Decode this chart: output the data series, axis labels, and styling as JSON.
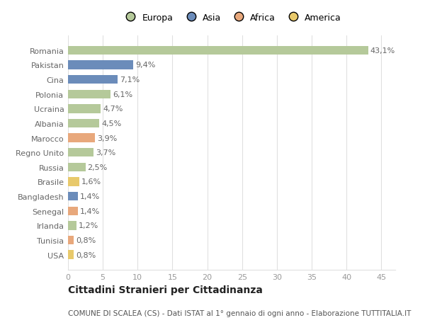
{
  "countries": [
    "Romania",
    "Pakistan",
    "Cina",
    "Polonia",
    "Ucraina",
    "Albania",
    "Marocco",
    "Regno Unito",
    "Russia",
    "Brasile",
    "Bangladesh",
    "Senegal",
    "Irlanda",
    "Tunisia",
    "USA"
  ],
  "values": [
    43.1,
    9.4,
    7.1,
    6.1,
    4.7,
    4.5,
    3.9,
    3.7,
    2.5,
    1.6,
    1.4,
    1.4,
    1.2,
    0.8,
    0.8
  ],
  "labels": [
    "43,1%",
    "9,4%",
    "7,1%",
    "6,1%",
    "4,7%",
    "4,5%",
    "3,9%",
    "3,7%",
    "2,5%",
    "1,6%",
    "1,4%",
    "1,4%",
    "1,2%",
    "0,8%",
    "0,8%"
  ],
  "colors": [
    "#b5c99a",
    "#6b8cba",
    "#6b8cba",
    "#b5c99a",
    "#b5c99a",
    "#b5c99a",
    "#e8a87c",
    "#b5c99a",
    "#b5c99a",
    "#e8c96b",
    "#6b8cba",
    "#e8a87c",
    "#b5c99a",
    "#e8a87c",
    "#e8c96b"
  ],
  "legend_labels": [
    "Europa",
    "Asia",
    "Africa",
    "America"
  ],
  "legend_colors": [
    "#b5c99a",
    "#6b8cba",
    "#e8a87c",
    "#e8c96b"
  ],
  "title": "Cittadini Stranieri per Cittadinanza",
  "subtitle": "COMUNE DI SCALEA (CS) - Dati ISTAT al 1° gennaio di ogni anno - Elaborazione TUTTITALIA.IT",
  "xlim": [
    0,
    47
  ],
  "xticks": [
    0,
    5,
    10,
    15,
    20,
    25,
    30,
    35,
    40,
    45
  ],
  "bg_color": "#ffffff",
  "plot_bg_color": "#ffffff",
  "grid_color": "#e0e0e0",
  "label_color": "#666666",
  "tick_color": "#999999",
  "title_color": "#222222",
  "subtitle_color": "#555555",
  "bar_height": 0.6,
  "title_fontsize": 10,
  "subtitle_fontsize": 7.5,
  "label_fontsize": 8,
  "ytick_fontsize": 8,
  "xtick_fontsize": 8,
  "legend_fontsize": 9
}
